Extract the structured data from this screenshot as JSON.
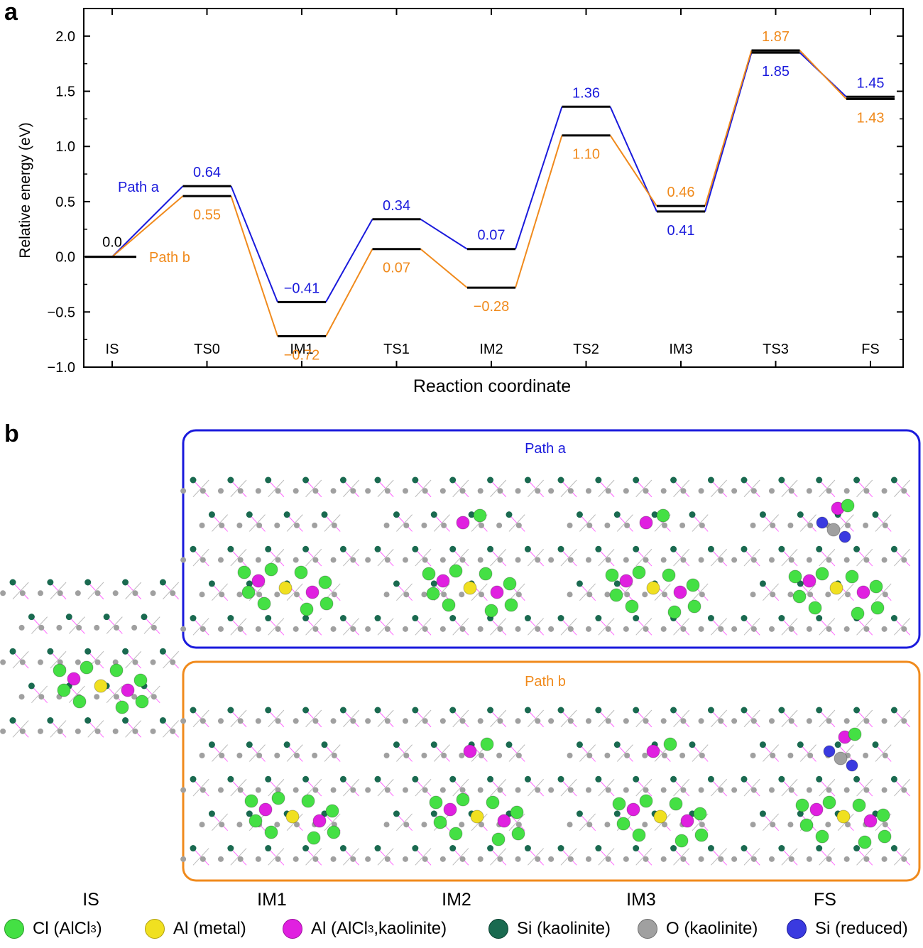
{
  "panel_a_label": "a",
  "panel_b_label": "b",
  "chart_data": {
    "type": "line",
    "xlabel": "Reaction coordinate",
    "ylabel": "Relative energy (eV)",
    "ylim": [
      -1.0,
      2.25
    ],
    "yticks": [
      "2.0",
      "1.5",
      "1.0",
      "0.5",
      "0.0",
      "−0.5",
      "−1.0"
    ],
    "ytick_values": [
      2.0,
      1.5,
      1.0,
      0.5,
      0.0,
      -0.5,
      -1.0
    ],
    "categories": [
      "IS",
      "TS0",
      "IM1",
      "TS1",
      "IM2",
      "TS2",
      "IM3",
      "TS3",
      "FS"
    ],
    "grid": false,
    "series": [
      {
        "name": "Path a",
        "color": "#1a1adc",
        "values": [
          0.0,
          0.64,
          -0.41,
          0.34,
          0.07,
          1.36,
          0.41,
          1.85,
          1.45
        ],
        "labels": [
          "0.0",
          "0.64",
          "−0.41",
          "0.34",
          "0.07",
          "1.36",
          "0.41",
          "1.85",
          "1.45"
        ]
      },
      {
        "name": "Path b",
        "color": "#f08a1c",
        "values": [
          0.0,
          0.55,
          -0.72,
          0.07,
          -0.28,
          1.1,
          0.46,
          1.87,
          1.43
        ],
        "labels": [
          "",
          "0.55",
          "−0.72",
          "0.07",
          "−0.28",
          "1.10",
          "0.46",
          "1.87",
          "1.43"
        ]
      }
    ],
    "is_label": "0.0",
    "label_color_is": "#000000"
  },
  "panel_b": {
    "path_a_title": "Path a",
    "path_b_title": "Path b",
    "path_a_color": "#1a1adc",
    "path_b_color": "#f08a1c",
    "captions": [
      "IS",
      "IM1",
      "IM2",
      "IM3",
      "FS"
    ]
  },
  "legend": [
    {
      "label": "Cl (AlCl",
      "sub": "3",
      "after": ")",
      "color": "#44e044"
    },
    {
      "label": "Al (metal)",
      "sub": "",
      "after": "",
      "color": "#f0e020"
    },
    {
      "label": "Al (AlCl",
      "sub": "3",
      "after": ",kaolinite)",
      "color": "#e020e0"
    },
    {
      "label": "Si (kaolinite)",
      "sub": "",
      "after": "",
      "color": "#1a6a50"
    },
    {
      "label": "O (kaolinite)",
      "sub": "",
      "after": "",
      "color": "#a0a0a0"
    },
    {
      "label": "Si (reduced)",
      "sub": "",
      "after": "",
      "color": "#3a3ae0"
    }
  ]
}
